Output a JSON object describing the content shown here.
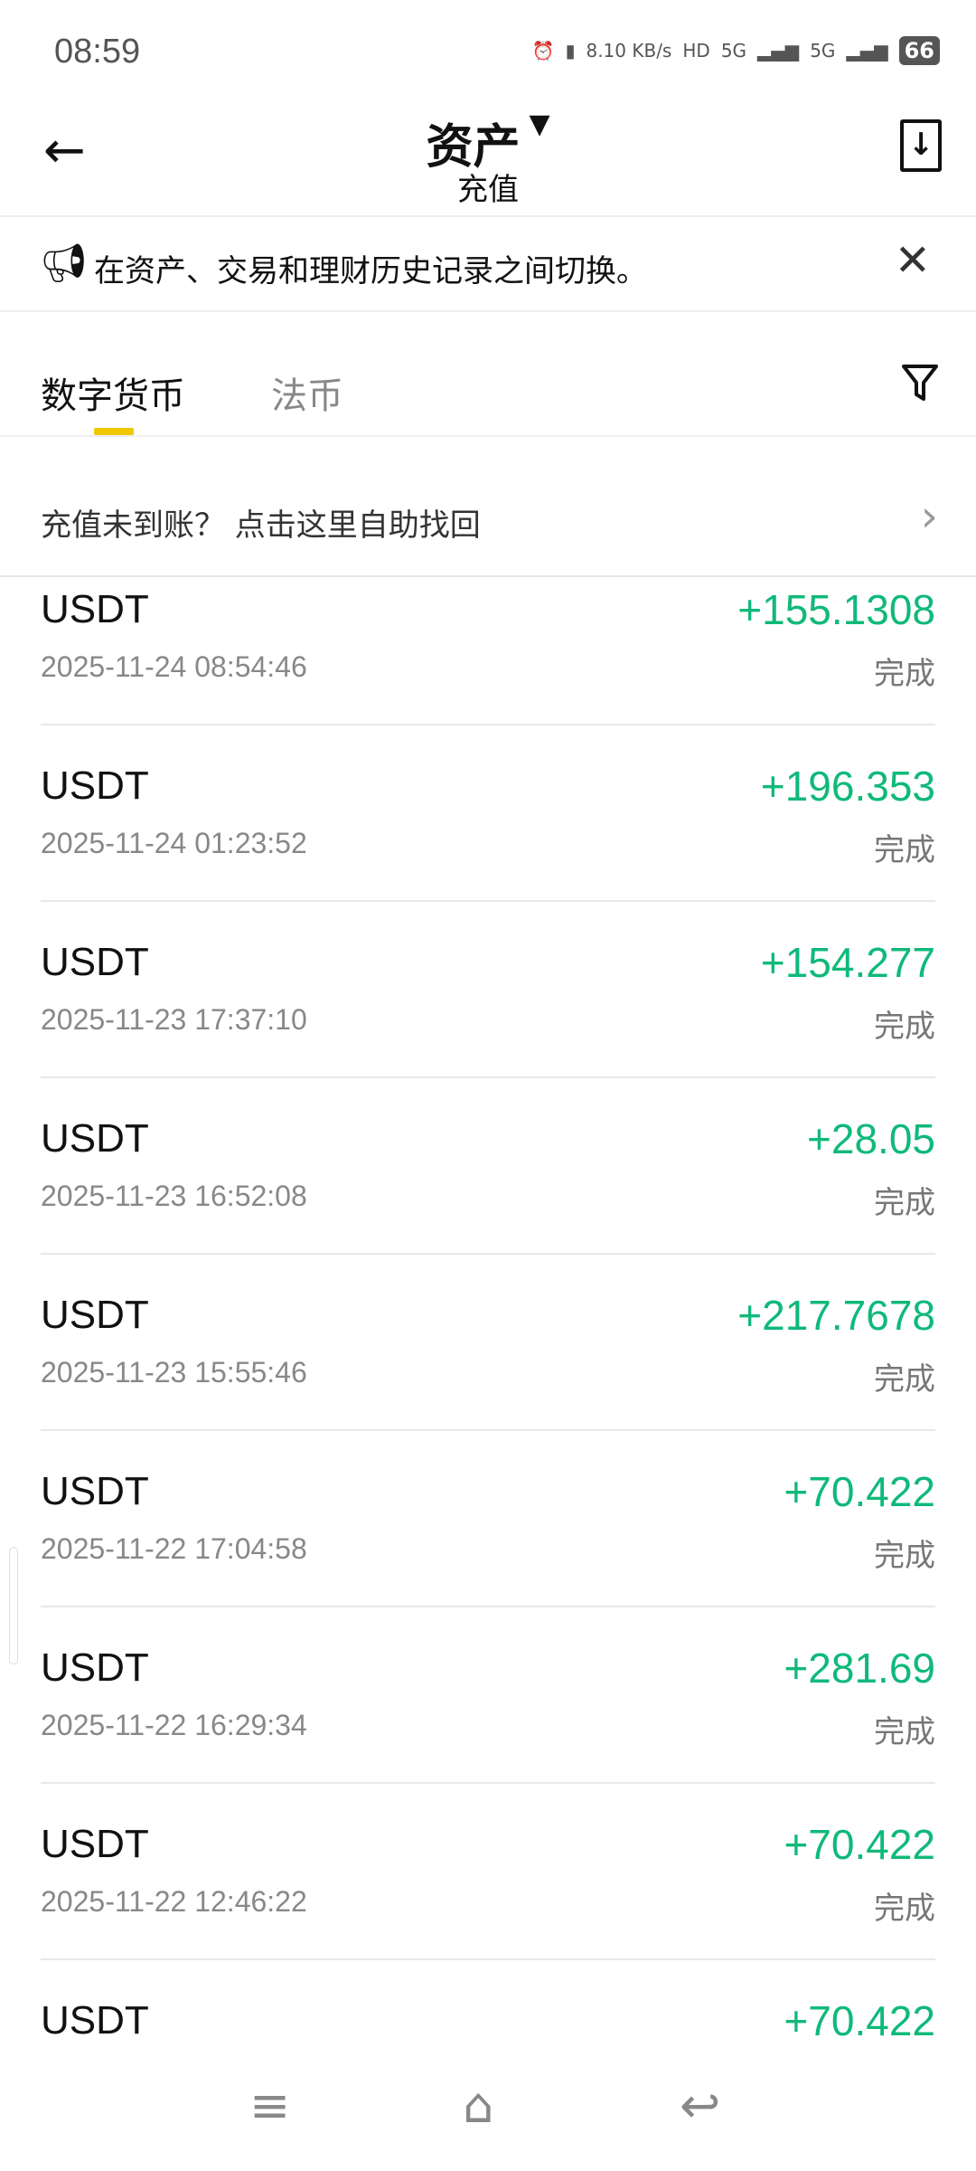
{
  "status_bar": {
    "time": "08:59",
    "net_speed": "8.10 KB/s",
    "sim1": "5G",
    "sim2": "5G",
    "battery": "66"
  },
  "header": {
    "title": "资产",
    "subtitle": "充值"
  },
  "notice": {
    "text": "在资产、交易和理财历史记录之间切换。"
  },
  "tabs": [
    {
      "label": "数字货币",
      "active": true
    },
    {
      "label": "法币",
      "active": false
    }
  ],
  "help": {
    "text": "充值未到账？ 点击这里自助找回"
  },
  "accent_color": "#0fb97a",
  "records": [
    {
      "coin": "USDT",
      "date": "2025-11-24 08:54:46",
      "amount": "+155.1308",
      "status": "完成"
    },
    {
      "coin": "USDT",
      "date": "2025-11-24 01:23:52",
      "amount": "+196.353",
      "status": "完成"
    },
    {
      "coin": "USDT",
      "date": "2025-11-23 17:37:10",
      "amount": "+154.277",
      "status": "完成"
    },
    {
      "coin": "USDT",
      "date": "2025-11-23 16:52:08",
      "amount": "+28.05",
      "status": "完成"
    },
    {
      "coin": "USDT",
      "date": "2025-11-23 15:55:46",
      "amount": "+217.7678",
      "status": "完成"
    },
    {
      "coin": "USDT",
      "date": "2025-11-22 17:04:58",
      "amount": "+70.422",
      "status": "完成"
    },
    {
      "coin": "USDT",
      "date": "2025-11-22 16:29:34",
      "amount": "+281.69",
      "status": "完成"
    },
    {
      "coin": "USDT",
      "date": "2025-11-22 12:46:22",
      "amount": "+70.422",
      "status": "完成"
    },
    {
      "coin": "USDT",
      "date": "",
      "amount": "+70.422",
      "status": ""
    }
  ]
}
